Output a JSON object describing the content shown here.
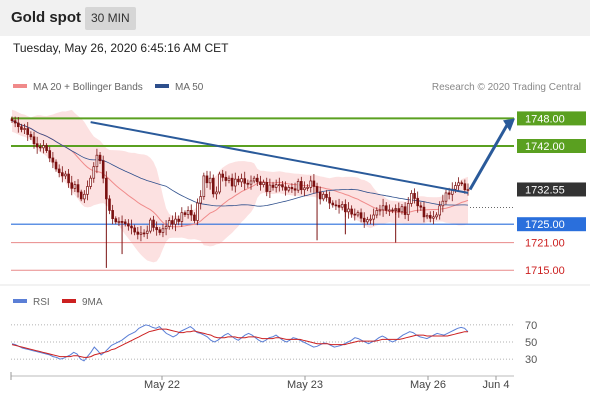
{
  "header": {
    "title": "Gold spot",
    "timeframe": "30 MIN"
  },
  "timestamp": "Tuesday, May 26, 2020 6:45:16 AM CET",
  "legend": {
    "ma20_label": "MA 20 + Bollinger Bands",
    "ma50_label": "MA 50",
    "credit": "Research © 2020 Trading Central",
    "rsi_label": "RSI",
    "rsi_ma_label": "9MA"
  },
  "colors": {
    "ma20": "#f08a8a",
    "band_fill": "#fbdcdc",
    "ma50": "#2e4f8c",
    "green_level": "#5aa020",
    "blue_level": "#2a6fdc",
    "red_level": "#e88a8a",
    "price_badge": "#333333",
    "candle": "#7a1010",
    "rsi": "#5b7fd6",
    "rsi_ma": "#cc2020",
    "arrow": "#2a5a9a"
  },
  "chart_data": [
    {
      "type": "candlestick",
      "ylim": [
        1712,
        1752
      ],
      "x_tick_labels": [
        "May 22",
        "May 23",
        "May 26",
        "Jun 4"
      ],
      "current_price": "1732.55",
      "levels": [
        {
          "label": "1748.00",
          "value": 1748.0,
          "kind": "resistance"
        },
        {
          "label": "1742.00",
          "value": 1742.0,
          "kind": "resistance"
        },
        {
          "label": "1725.00",
          "value": 1725.0,
          "kind": "pivot"
        },
        {
          "label": "1721.00",
          "value": 1721.0,
          "kind": "support"
        },
        {
          "label": "1715.00",
          "value": 1715.0,
          "kind": "support"
        }
      ],
      "trendline": {
        "from": 1747.2,
        "to": 1731.8
      },
      "arrow_target": 1748.0,
      "close": [
        1747.5,
        1747.0,
        1746.2,
        1745.6,
        1745.8,
        1744.5,
        1744.0,
        1742.5,
        1741.8,
        1741.6,
        1742.1,
        1741.0,
        1739.4,
        1738.5,
        1737.0,
        1736.2,
        1735.5,
        1735.9,
        1734.0,
        1732.8,
        1733.6,
        1732.0,
        1730.5,
        1731.5,
        1733.2,
        1735.0,
        1737.5,
        1740.0,
        1738.8,
        1735.0,
        1730.5,
        1728.0,
        1726.2,
        1725.5,
        1725.6,
        1725.5,
        1725.1,
        1724.6,
        1724.2,
        1723.3,
        1722.8,
        1723.1,
        1723.0,
        1723.5,
        1725.9,
        1724.3,
        1723.8,
        1723.2,
        1724.0,
        1724.5,
        1725.8,
        1725.0,
        1726.1,
        1725.6,
        1727.5,
        1727.1,
        1728.0,
        1727.0,
        1725.8,
        1729.6,
        1731.0,
        1735.5,
        1734.0,
        1735.0,
        1731.6,
        1732.0,
        1735.9,
        1735.2,
        1734.5,
        1735.0,
        1733.3,
        1734.8,
        1734.2,
        1734.9,
        1733.9,
        1733.7,
        1734.4,
        1735.0,
        1734.2,
        1733.6,
        1734.1,
        1732.1,
        1733.5,
        1733.0,
        1733.6,
        1733.6,
        1733.1,
        1732.4,
        1733.0,
        1732.7,
        1732.4,
        1734.3,
        1732.5,
        1732.9,
        1733.0,
        1734.4,
        1733.2,
        1732.0,
        1730.5,
        1731.5,
        1730.8,
        1729.6,
        1729.2,
        1729.1,
        1728.7,
        1729.3,
        1727.7,
        1728.3,
        1727.2,
        1727.0,
        1727.5,
        1726.3,
        1725.5,
        1726.0,
        1726.1,
        1727.0,
        1728.0,
        1728.1,
        1729.0,
        1728.0,
        1728.1,
        1727.9,
        1728.4,
        1727.7,
        1728.8,
        1727.1,
        1729.5,
        1731.7,
        1730.6,
        1729.0,
        1728.7,
        1726.6,
        1726.9,
        1726.3,
        1726.6,
        1727.0,
        1729.0,
        1730.0,
        1731.8,
        1731.5,
        1732.6,
        1733.4,
        1734.0,
        1733.8,
        1732.5,
        1732.55
      ]
    },
    {
      "type": "line",
      "ylim": [
        15,
        85
      ],
      "y_tick_labels": [
        "70",
        "50",
        "30"
      ],
      "series": [
        {
          "name": "RSI",
          "values": [
            48,
            47,
            45,
            43,
            42,
            41,
            40,
            39,
            38,
            37,
            36,
            35,
            33,
            32,
            30,
            31,
            33,
            35,
            38,
            36,
            30,
            28,
            33,
            38,
            44,
            40,
            35,
            38,
            42,
            46,
            48,
            50,
            52,
            55,
            58,
            60,
            62,
            66,
            68,
            70,
            69,
            67,
            66,
            68,
            64,
            60,
            58,
            56,
            58,
            62,
            64,
            66,
            68,
            65,
            61,
            60,
            58,
            56,
            52,
            50,
            52,
            55,
            58,
            60,
            57,
            54,
            52,
            55,
            58,
            60,
            58,
            55,
            52,
            50,
            52,
            55,
            56,
            58,
            55,
            52,
            50,
            52,
            55,
            54,
            52,
            50,
            48,
            46,
            44,
            45,
            47,
            49,
            48,
            46,
            44,
            45,
            46,
            48,
            50,
            52,
            55,
            54,
            52,
            50,
            48,
            50,
            52,
            55,
            57,
            55,
            52,
            50,
            52,
            55,
            58,
            60,
            62,
            61,
            58,
            56,
            55,
            54,
            56,
            58,
            60,
            59,
            58,
            60,
            62,
            64,
            66,
            67,
            66,
            62
          ]
        },
        {
          "name": "9MA",
          "values": [
            47,
            46,
            45,
            44,
            43,
            42,
            41,
            40,
            39,
            38,
            37,
            36,
            35,
            34,
            33,
            33,
            33,
            33,
            34,
            34,
            33,
            32,
            32,
            33,
            35,
            36,
            37,
            38,
            39,
            41,
            42,
            44,
            46,
            48,
            50,
            52,
            54,
            56,
            58,
            60,
            62,
            63,
            64,
            65,
            65,
            65,
            64,
            63,
            62,
            61,
            61,
            62,
            62,
            63,
            62,
            61,
            60,
            59,
            58,
            56,
            55,
            55,
            55,
            56,
            56,
            56,
            55,
            55,
            55,
            56,
            56,
            56,
            55,
            54,
            54,
            54,
            54,
            55,
            55,
            54,
            53,
            53,
            53,
            53,
            53,
            52,
            51,
            50,
            49,
            48,
            48,
            48,
            48,
            47,
            47,
            47,
            47,
            47,
            48,
            49,
            50,
            51,
            51,
            51,
            51,
            51,
            51,
            52,
            53,
            53,
            53,
            53,
            53,
            53,
            54,
            55,
            56,
            57,
            58,
            58,
            58,
            57,
            57,
            57,
            57,
            57,
            57,
            57,
            58,
            59,
            60,
            61,
            62,
            62
          ]
        }
      ],
      "x_tick_labels": [
        "May 22",
        "May 23",
        "May 26",
        "Jun 4"
      ]
    }
  ]
}
